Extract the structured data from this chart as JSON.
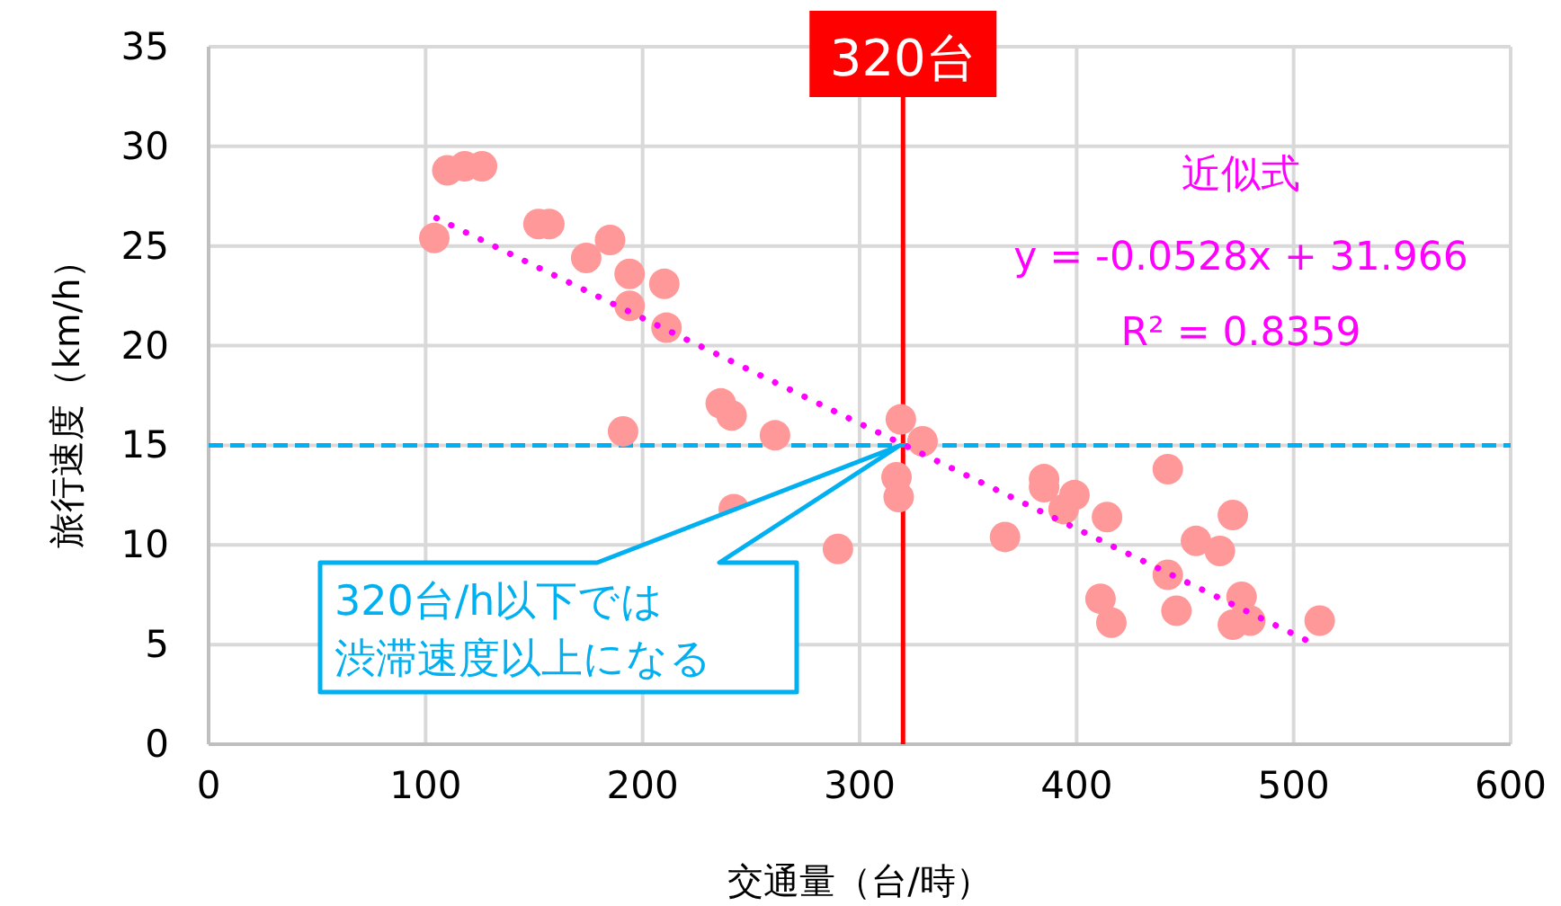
{
  "chart_data": {
    "type": "scatter",
    "xlabel": "交通量（台/時）",
    "ylabel": "旅行速度（km/h）",
    "xlim": [
      0,
      600
    ],
    "ylim": [
      0,
      35
    ],
    "xticks": [
      0,
      100,
      200,
      300,
      400,
      500,
      600
    ],
    "yticks": [
      0,
      5,
      10,
      15,
      20,
      25,
      30,
      35
    ],
    "grid": true,
    "marker": "circle",
    "series": [
      {
        "color": "#ff9999",
        "x": [
          104,
          110,
          118,
          126,
          152,
          157,
          174,
          185,
          194,
          194,
          210,
          211,
          191,
          236,
          241,
          261,
          242,
          290,
          319,
          329,
          317,
          318,
          367,
          385,
          385,
          394,
          399,
          414,
          442,
          455,
          466,
          472,
          411,
          416,
          442,
          446,
          476,
          472,
          480,
          512
        ],
        "values": [
          25.4,
          28.8,
          29.0,
          29.0,
          26.1,
          26.1,
          24.4,
          25.3,
          23.6,
          22.0,
          23.1,
          20.9,
          15.7,
          17.1,
          16.5,
          15.5,
          11.8,
          9.8,
          16.3,
          15.2,
          13.4,
          12.4,
          10.4,
          13.3,
          12.9,
          11.8,
          12.5,
          11.4,
          13.8,
          10.2,
          9.7,
          11.5,
          7.3,
          6.1,
          8.5,
          6.7,
          7.4,
          6.0,
          6.2,
          6.2
        ]
      },
      {
        "type": "line",
        "color": "#ff00ff",
        "line_style": "dotted",
        "marker": "none",
        "x": [
          105,
          510
        ],
        "values": [
          26.4,
          5.0
        ]
      }
    ],
    "ref_lines": [
      {
        "axis": "x",
        "value": 320,
        "label": "320台",
        "color": "#ff0000",
        "line_style": "solid"
      },
      {
        "axis": "y",
        "value": 15,
        "color": "#00b0f0",
        "line_style": "dashed"
      }
    ],
    "annotations": [
      "近似式",
      "y = -0.0528x + 31.966",
      "R² = 0.8359",
      "320台/h以下では",
      "渋滞速度以上になる"
    ]
  }
}
